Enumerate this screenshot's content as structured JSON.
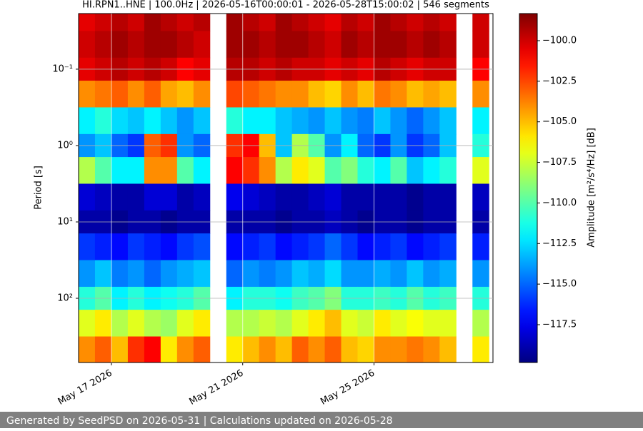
{
  "chart_data": {
    "type": "heatmap",
    "title": "HI.RPN1..HNE | 100.0Hz | 2026-05-16T00:00:01 - 2026-05-28T15:00:02 | 546 segments",
    "y_label": "Period [s]",
    "colorbar_label": "Amplitude [m²/s⁴/Hz] [dB]",
    "xlim": [
      "2026-05-16T00:00:01",
      "2026-05-28T15:00:02"
    ],
    "xticks": [
      {
        "value": "2026-05-17T00:00:00",
        "label": "May 17 2026"
      },
      {
        "value": "2026-05-21T00:00:00",
        "label": "May 21 2026"
      },
      {
        "value": "2026-05-25T00:00:00",
        "label": "May 25 2026"
      }
    ],
    "ylim": [
      0.0187,
      693
    ],
    "ylog": true,
    "yinvert": true,
    "yticks": [
      {
        "value": 0.1,
        "label": "10⁻¹"
      },
      {
        "value": 1,
        "label": "10⁰"
      },
      {
        "value": 10,
        "label": "10¹"
      },
      {
        "value": 100,
        "label": "10²"
      }
    ],
    "grid": true,
    "clim": [
      -119.83,
      -98.33
    ],
    "cticks": [
      {
        "value": -100,
        "label": "−100.0"
      },
      {
        "value": -102.5,
        "label": "−102.5"
      },
      {
        "value": -105,
        "label": "−105.0"
      },
      {
        "value": -107.5,
        "label": "−107.5"
      },
      {
        "value": -110,
        "label": "−110.0"
      },
      {
        "value": -112.5,
        "label": "−112.5"
      },
      {
        "value": -115,
        "label": "−115.0"
      },
      {
        "value": -117.5,
        "label": "−117.5"
      }
    ],
    "colormap": "jet",
    "x": [
      "2026-05-16T06:00:00",
      "2026-05-16T18:00:00",
      "2026-05-17T06:00:00",
      "2026-05-17T18:00:00",
      "2026-05-18T06:00:00",
      "2026-05-18T18:00:00",
      "2026-05-19T06:00:00",
      "2026-05-19T18:00:00",
      "2026-05-20T06:00:00",
      "2026-05-20T18:00:00",
      "2026-05-21T06:00:00",
      "2026-05-21T18:00:00",
      "2026-05-22T06:00:00",
      "2026-05-22T18:00:00",
      "2026-05-23T06:00:00",
      "2026-05-23T18:00:00",
      "2026-05-24T06:00:00",
      "2026-05-24T18:00:00",
      "2026-05-25T06:00:00",
      "2026-05-25T18:00:00",
      "2026-05-26T06:00:00",
      "2026-05-26T18:00:00",
      "2026-05-27T06:00:00",
      "2026-05-27T18:00:00",
      "2026-05-28T06:00:00"
    ],
    "y": [
      0.02,
      0.05,
      0.1,
      0.2,
      0.5,
      1,
      2,
      5,
      10,
      20,
      50,
      100,
      200,
      500
    ],
    "z": [
      [
        -100.5,
        -100,
        -99.5,
        -100,
        -99,
        -99.5,
        -100,
        -99.5,
        null,
        -99,
        -99.5,
        -100,
        -99,
        -99.5,
        -100,
        -100.5,
        -99.5,
        -100,
        -99,
        -99.5,
        -100,
        -99.5,
        -100,
        null,
        -100
      ],
      [
        -100,
        -99.5,
        -99,
        -99.5,
        -99,
        -99,
        -99.5,
        -100,
        null,
        -99,
        -99,
        -99.5,
        -99,
        -99,
        -99.5,
        -100,
        -99,
        -99.5,
        -99,
        -99,
        -99.5,
        -99,
        -99.5,
        null,
        -100
      ],
      [
        -100.5,
        -100,
        -99.5,
        -100,
        -99.5,
        -100,
        -101,
        -100.5,
        null,
        -99.5,
        -99.5,
        -100,
        -99.5,
        -100,
        -100,
        -100.5,
        -100,
        -100.5,
        -99.5,
        -100,
        -100.5,
        -100,
        -100,
        null,
        -101
      ],
      [
        -104,
        -103.5,
        -103,
        -104,
        -103,
        -104.5,
        -105,
        -104,
        null,
        -102.5,
        -103,
        -103.5,
        -104,
        -104,
        -105,
        -105.5,
        -104,
        -105,
        -103.5,
        -104,
        -105,
        -104.5,
        -105,
        null,
        -104
      ],
      [
        -112,
        -111,
        -112.5,
        -113,
        -112,
        -113,
        -114,
        -113,
        null,
        -111,
        -112,
        -112,
        -113,
        -113.5,
        -114,
        -113,
        -114,
        -114.5,
        -113,
        -114,
        -115,
        -114,
        -113,
        null,
        -112
      ],
      [
        -114,
        -113,
        -115,
        -116,
        -103,
        -102,
        -114,
        -115,
        null,
        -102,
        -101,
        -105,
        -113,
        -108,
        -110,
        -114,
        -112,
        -115,
        -116,
        -114,
        -116,
        -115,
        -113,
        null,
        -111
      ],
      [
        -108,
        -110,
        -112,
        -112,
        -104,
        -104,
        -110,
        -112,
        null,
        -101,
        -102,
        -104,
        -108,
        -106,
        -107,
        -110,
        -109,
        -111,
        -112,
        -110,
        -113,
        -112,
        -111,
        null,
        -107
      ],
      [
        -118,
        -118.5,
        -119,
        -119,
        -118,
        -118,
        -119,
        -118.5,
        null,
        -117.5,
        -118,
        -118.5,
        -119,
        -119,
        -118.5,
        -118,
        -119,
        -119,
        -119,
        -119,
        -119.5,
        -119,
        -119,
        null,
        -118.5
      ],
      [
        -119,
        -119,
        -119.5,
        -119,
        -119,
        -119.5,
        -119,
        -119,
        null,
        -119,
        -119,
        -119,
        -119.5,
        -119,
        -119,
        -118.5,
        -119,
        -119.5,
        -119,
        -119,
        -119.5,
        -119,
        -119,
        null,
        -119
      ],
      [
        -116,
        -116.5,
        -117,
        -116,
        -116.5,
        -117,
        -116,
        -115.5,
        null,
        -117,
        -116.5,
        -116,
        -117,
        -116.5,
        -116,
        -115,
        -116,
        -117,
        -116.5,
        -116,
        -117,
        -116.5,
        -116,
        null,
        -116.5
      ],
      [
        -114,
        -113,
        -114.5,
        -114,
        -115,
        -114,
        -113.5,
        -113,
        null,
        -115,
        -114,
        -114.5,
        -114,
        -113,
        -113.5,
        -112.5,
        -114,
        -114,
        -113.5,
        -114,
        -113,
        -114,
        -113.5,
        null,
        -114
      ],
      [
        -111,
        -110,
        -112,
        -111,
        -112,
        -111.5,
        -111,
        -110,
        null,
        -112,
        -111,
        -111,
        -111.5,
        -110.5,
        -110,
        -109,
        -111,
        -111,
        -110.5,
        -111,
        -110,
        -111,
        -110.5,
        null,
        -111
      ],
      [
        -107,
        -106,
        -108,
        -107,
        -108,
        -108.5,
        -107,
        -106,
        null,
        -108,
        -108,
        -107.5,
        -108,
        -107,
        -106,
        -105,
        -107,
        -107.5,
        -106,
        -107,
        -106.5,
        -107,
        -107,
        null,
        -108
      ],
      [
        -104,
        -103,
        -105,
        -102,
        -101,
        -106,
        -104,
        -103,
        null,
        -106,
        -105,
        -104,
        -105,
        -103,
        -104,
        -103,
        -105,
        -105.5,
        -104,
        -104,
        -103.5,
        -104,
        -105,
        null,
        -106
      ]
    ]
  },
  "footer": "Generated by SeedPSD on 2026-05-31 | Calculations updated on 2026-05-28"
}
